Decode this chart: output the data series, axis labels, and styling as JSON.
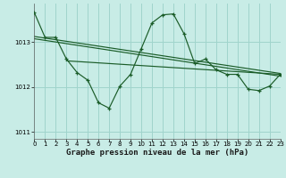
{
  "title": "Graphe pression niveau de la mer (hPa)",
  "bg_color": "#c8ece6",
  "grid_color": "#a0d4cc",
  "line_color": "#1a5c28",
  "xlim": [
    0,
    23
  ],
  "ylim": [
    1010.85,
    1013.85
  ],
  "yticks": [
    1011,
    1012,
    1013
  ],
  "xticks": [
    0,
    1,
    2,
    3,
    4,
    5,
    6,
    7,
    8,
    9,
    10,
    11,
    12,
    13,
    14,
    15,
    16,
    17,
    18,
    19,
    20,
    21,
    22,
    23
  ],
  "series1_x": [
    0,
    1,
    2,
    3,
    4,
    5,
    6,
    7,
    8,
    9,
    10,
    11,
    12,
    13,
    14,
    15,
    16,
    17,
    18,
    19,
    20,
    21,
    22,
    23
  ],
  "series1_y": [
    1013.65,
    1013.1,
    1013.1,
    1012.62,
    1012.32,
    1012.15,
    1011.65,
    1011.53,
    1012.02,
    1012.28,
    1012.85,
    1013.42,
    1013.6,
    1013.62,
    1013.18,
    1012.52,
    1012.62,
    1012.38,
    1012.28,
    1012.28,
    1011.95,
    1011.92,
    1012.02,
    1012.28
  ],
  "trend1_x": [
    0,
    23
  ],
  "trend1_y": [
    1013.12,
    1012.3
  ],
  "trend2_x": [
    0,
    23
  ],
  "trend2_y": [
    1013.07,
    1012.24
  ],
  "trend3_x": [
    3,
    23
  ],
  "trend3_y": [
    1012.58,
    1012.28
  ],
  "title_fontsize": 6.5,
  "tick_fontsize": 5
}
